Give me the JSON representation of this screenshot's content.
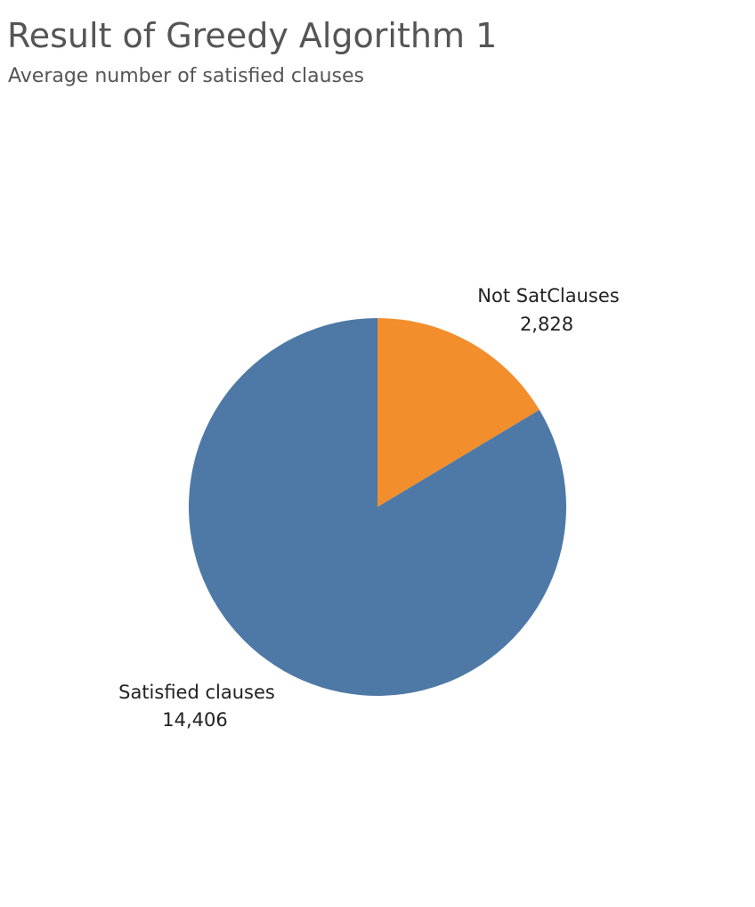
{
  "chart_data": {
    "type": "pie",
    "title": "Result of Greedy Algorithm 1",
    "subtitle": "Average number of satisfied clauses",
    "slices": [
      {
        "name": "Not SatClauses",
        "value": 2828,
        "value_label": "2,828",
        "color": "#F28E2B"
      },
      {
        "name": "Satisfied clauses",
        "value": 14406,
        "value_label": "14,406",
        "color": "#4E79A7"
      }
    ],
    "start_angle_deg": 0,
    "direction": "clockwise",
    "legend": "none"
  }
}
